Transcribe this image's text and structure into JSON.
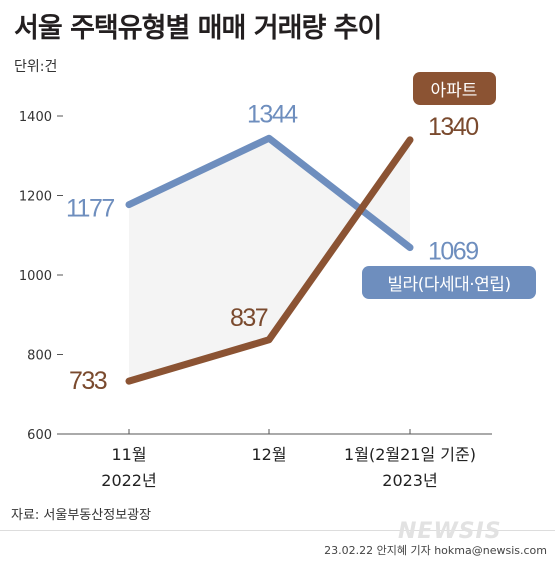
{
  "title": "서울 주택유형별 매매 거래량 추이",
  "unit": "단위:건",
  "source": "자료:  서울부동산정보광장",
  "credit": "23.02.22 안지혜 기자 hokma@newsis.com",
  "watermark": "NEWSIS",
  "chart_data": {
    "type": "line",
    "x": [
      "11월",
      "12월",
      "1월(2월21일 기준)"
    ],
    "x_year_labels": [
      "2022년",
      "",
      "2023년"
    ],
    "y_ticks": [
      600,
      800,
      1000,
      1200,
      1400
    ],
    "ylim": [
      600,
      1400
    ],
    "grid": false,
    "series": [
      {
        "name": "빌라(다세대·연립)",
        "values": [
          1177,
          1344,
          1069
        ],
        "color": "#6e8ebe",
        "label_color": "#6e8ebe"
      },
      {
        "name": "아파트",
        "values": [
          733,
          837,
          1340
        ],
        "color": "#8b5333",
        "label_color": "#7a4a2e"
      }
    ],
    "fill_between": "#f4f4f4"
  }
}
